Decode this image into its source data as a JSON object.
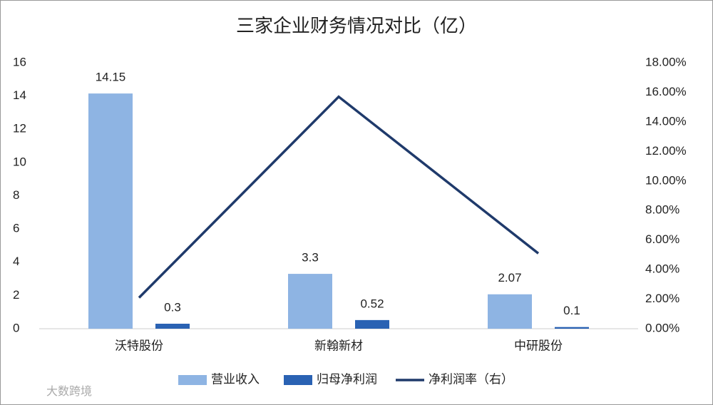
{
  "chart_data": {
    "type": "bar-line",
    "title": "三家企业财务情况对比（亿）",
    "watermark": "大数跨境",
    "categories": [
      "沃特股份",
      "新翰新材",
      "中研股份"
    ],
    "series": [
      {
        "name": "营业收入",
        "type": "bar",
        "color": "#8eb4e3",
        "values": [
          14.15,
          3.3,
          2.07
        ]
      },
      {
        "name": "归母净利润",
        "type": "bar",
        "color": "#2a62b3",
        "values": [
          0.3,
          0.52,
          0.1
        ]
      },
      {
        "name": "净利润率（右）",
        "type": "line",
        "axis": "y2",
        "color": "#1f3a6b",
        "values": [
          2.1,
          15.7,
          5.1
        ]
      }
    ],
    "ylim": [
      0,
      16
    ],
    "yticks": [
      0,
      2,
      4,
      6,
      8,
      10,
      12,
      14,
      16
    ],
    "y2lim": [
      0,
      18
    ],
    "y2ticks": [
      {
        "value": 0,
        "label": "0.00%"
      },
      {
        "value": 2,
        "label": "2.00%"
      },
      {
        "value": 4,
        "label": "4.00%"
      },
      {
        "value": 6,
        "label": "6.00%"
      },
      {
        "value": 8,
        "label": "8.00%"
      },
      {
        "value": 10,
        "label": "10.00%"
      },
      {
        "value": 12,
        "label": "12.00%"
      },
      {
        "value": 14,
        "label": "14.00%"
      },
      {
        "value": 16,
        "label": "16.00%"
      },
      {
        "value": 18,
        "label": "18.00%"
      }
    ],
    "legend": "bottom"
  }
}
